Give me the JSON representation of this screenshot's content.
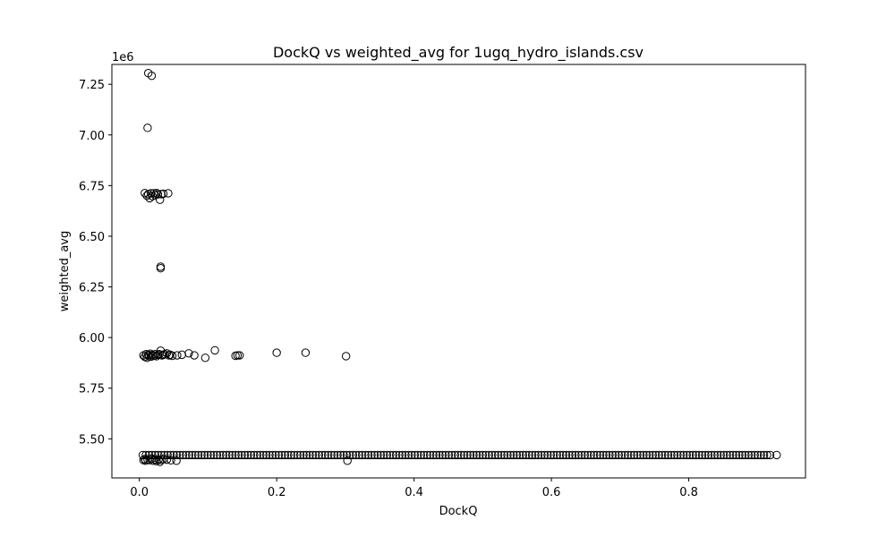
{
  "chart_data": {
    "type": "scatter",
    "title": "DockQ vs weighted_avg for 1ugq_hydro_islands.csv",
    "xlabel": "DockQ",
    "ylabel": "weighted_avg",
    "y_offset_label": "1e6",
    "y_scale_factor": 1000000,
    "xlim": [
      -0.04,
      0.97
    ],
    "ylim": [
      5.307,
      7.348
    ],
    "xticks": [
      0.0,
      0.2,
      0.4,
      0.6,
      0.8
    ],
    "xtick_labels": [
      "0.0",
      "0.2",
      "0.4",
      "0.6",
      "0.8"
    ],
    "yticks": [
      5.5,
      5.75,
      6.0,
      6.25,
      6.5,
      6.75,
      7.0,
      7.25
    ],
    "ytick_labels": [
      "5.50",
      "5.75",
      "6.00",
      "6.25",
      "6.50",
      "6.75",
      "7.00",
      "7.25"
    ],
    "grid": false,
    "legend": "none",
    "marker": "open-circle",
    "marker_color": "#000000",
    "series": [
      {
        "points": [
          [
            0.013,
            7.305
          ],
          [
            0.018,
            7.292
          ],
          [
            0.012,
            7.035
          ],
          [
            0.008,
            6.713
          ],
          [
            0.011,
            6.7
          ],
          [
            0.013,
            6.708
          ],
          [
            0.015,
            6.688
          ],
          [
            0.017,
            6.712
          ],
          [
            0.019,
            6.698
          ],
          [
            0.021,
            6.712
          ],
          [
            0.023,
            6.702
          ],
          [
            0.025,
            6.713
          ],
          [
            0.027,
            6.707
          ],
          [
            0.03,
            6.68
          ],
          [
            0.032,
            6.708
          ],
          [
            0.035,
            6.71
          ],
          [
            0.042,
            6.712
          ],
          [
            0.031,
            6.35
          ],
          [
            0.031,
            6.342
          ],
          [
            0.006,
            5.912
          ],
          [
            0.008,
            5.905
          ],
          [
            0.01,
            5.918
          ],
          [
            0.011,
            5.9
          ],
          [
            0.013,
            5.915
          ],
          [
            0.014,
            5.908
          ],
          [
            0.016,
            5.92
          ],
          [
            0.017,
            5.906
          ],
          [
            0.019,
            5.914
          ],
          [
            0.021,
            5.91
          ],
          [
            0.023,
            5.918
          ],
          [
            0.025,
            5.908
          ],
          [
            0.027,
            5.915
          ],
          [
            0.029,
            5.918
          ],
          [
            0.031,
            5.935
          ],
          [
            0.033,
            5.912
          ],
          [
            0.035,
            5.915
          ],
          [
            0.037,
            5.918
          ],
          [
            0.04,
            5.922
          ],
          [
            0.043,
            5.912
          ],
          [
            0.045,
            5.915
          ],
          [
            0.048,
            5.91
          ],
          [
            0.055,
            5.912
          ],
          [
            0.062,
            5.915
          ],
          [
            0.072,
            5.922
          ],
          [
            0.08,
            5.912
          ],
          [
            0.096,
            5.9
          ],
          [
            0.11,
            5.937
          ],
          [
            0.14,
            5.91
          ],
          [
            0.143,
            5.912
          ],
          [
            0.146,
            5.912
          ],
          [
            0.2,
            5.925
          ],
          [
            0.242,
            5.925
          ],
          [
            0.301,
            5.908
          ],
          [
            0.006,
            5.395
          ],
          [
            0.008,
            5.4
          ],
          [
            0.009,
            5.392
          ],
          [
            0.012,
            5.398
          ],
          [
            0.015,
            5.395
          ],
          [
            0.018,
            5.402
          ],
          [
            0.02,
            5.392
          ],
          [
            0.023,
            5.398
          ],
          [
            0.025,
            5.39
          ],
          [
            0.028,
            5.398
          ],
          [
            0.03,
            5.387
          ],
          [
            0.032,
            5.396
          ],
          [
            0.035,
            5.4
          ],
          [
            0.04,
            5.397
          ],
          [
            0.046,
            5.394
          ],
          [
            0.054,
            5.392
          ],
          [
            0.303,
            5.392
          ]
        ]
      }
    ],
    "dense_band": {
      "y": 5.42,
      "x_start": 0.005,
      "x_end": 0.922,
      "step": 0.0045,
      "extra_points": [
        [
          0.928,
          5.42
        ]
      ]
    }
  }
}
